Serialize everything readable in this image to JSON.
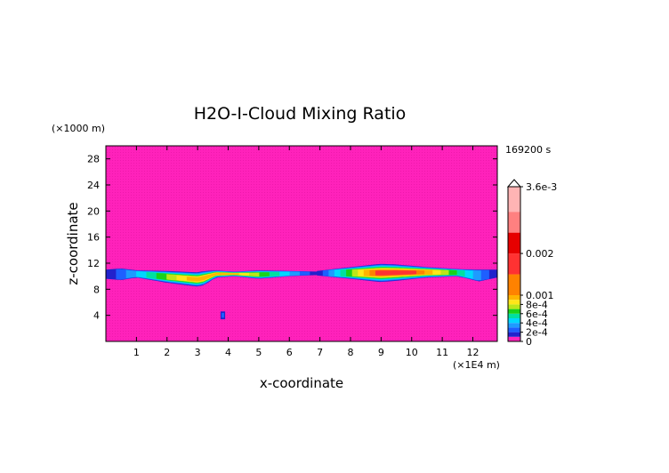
{
  "chart_data": {
    "type": "heatmap",
    "title": "H2O-I-Cloud Mixing Ratio",
    "time_label": "169200 s",
    "xlabel": "x-coordinate",
    "ylabel": "z-coordinate",
    "x_unit_label": "(×1E4 m)",
    "y_unit_label": "(×1000 m)",
    "xlim": [
      0,
      12.8
    ],
    "ylim": [
      0,
      30
    ],
    "x_ticks": [
      "1",
      "2",
      "3",
      "4",
      "5",
      "6",
      "7",
      "8",
      "9",
      "10",
      "11",
      "12"
    ],
    "y_ticks": [
      "4",
      "8",
      "12",
      "16",
      "20",
      "24",
      "28"
    ],
    "background_color": "#ff22bb",
    "colorbar": {
      "labels": [
        "3.6e-3",
        "0.002",
        "0.001",
        "8e-4",
        "6e-4",
        "4e-4",
        "2e-4",
        "0"
      ],
      "levels": [
        0,
        0.0001,
        0.0002,
        0.0003,
        0.0004,
        0.0005,
        0.0006,
        0.0007,
        0.0008,
        0.0009,
        0.001,
        0.0015,
        0.002,
        0.0025,
        0.003,
        0.0036
      ],
      "colors": [
        "#ff22bb",
        "#2222cc",
        "#1e5fff",
        "#1e9bff",
        "#00d7ff",
        "#00e0a0",
        "#19d219",
        "#bce619",
        "#ffe619",
        "#ffb400",
        "#ff8200",
        "#ff3232",
        "#e60000",
        "#ff8080",
        "#ffb4b4",
        "#ffd6d6"
      ]
    },
    "cloud_regions": [
      {
        "name": "left-layer",
        "x": [
          0.0,
          0.5,
          1.0,
          2.0,
          3.0,
          3.2,
          3.6,
          4.2,
          5.0,
          6.0,
          7.0
        ],
        "z_top": [
          11.0,
          11.2,
          10.9,
          10.8,
          10.6,
          10.8,
          10.9,
          10.7,
          10.9,
          10.8,
          10.7
        ],
        "z_bottom": [
          9.6,
          9.4,
          9.8,
          9.0,
          8.4,
          8.6,
          9.8,
          10.0,
          9.6,
          10.0,
          10.2
        ],
        "max_value": 0.0009
      },
      {
        "name": "right-layer",
        "x": [
          6.9,
          8.0,
          9.0,
          9.5,
          10.5,
          11.5,
          12.2,
          12.8
        ],
        "z_top": [
          10.8,
          11.4,
          11.9,
          11.8,
          11.4,
          11.1,
          11.0,
          11.0
        ],
        "z_bottom": [
          10.1,
          9.6,
          9.1,
          9.3,
          9.8,
          10.0,
          9.2,
          9.8
        ],
        "max_value": 0.0016
      },
      {
        "name": "isolated-cell",
        "x": [
          3.75,
          3.9
        ],
        "z_top": [
          4.6,
          4.6
        ],
        "z_bottom": [
          3.4,
          3.4
        ],
        "max_value": 0.0002
      }
    ]
  }
}
